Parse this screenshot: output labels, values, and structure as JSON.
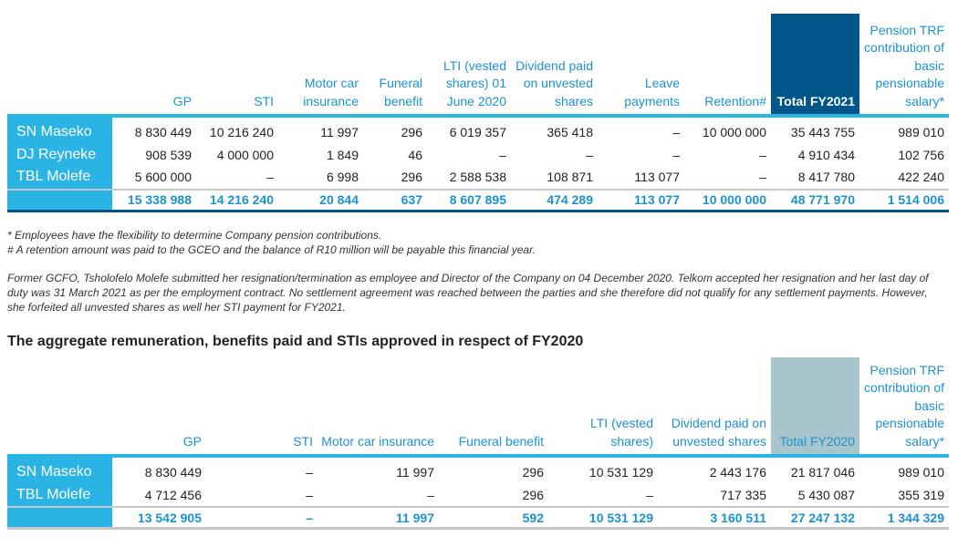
{
  "table_fy2021": {
    "headers": [
      "GP",
      "STI",
      "Motor car insurance",
      "Funeral benefit",
      "LTI (vested shares) 01 June 2020",
      "Dividend paid on unvested shares",
      "Leave payments",
      "Retention#",
      "Total FY2021",
      "Pension TRF contribution of basic pensionable salary*"
    ],
    "rows": [
      {
        "name": "SN Maseko",
        "values": [
          "8 830 449",
          "10 216 240",
          "11 997",
          "296",
          "6 019 357",
          "365 418",
          "–",
          "10 000 000",
          "35 443 755",
          "989 010"
        ]
      },
      {
        "name": "DJ Reyneke",
        "values": [
          "908 539",
          "4 000 000",
          "1 849",
          "46",
          "–",
          "–",
          "–",
          "–",
          "4 910 434",
          "102 756"
        ]
      },
      {
        "name": "TBL Molefe",
        "values": [
          "5 600 000",
          "–",
          "6 998",
          "296",
          "2 588 538",
          "108 871",
          "113 077",
          "–",
          "8 417 780",
          "422 240"
        ]
      }
    ],
    "totals": [
      "15 338 988",
      "14 216 240",
      "20 844",
      "637",
      "8 607 895",
      "474 289",
      "113 077",
      "10 000 000",
      "48 771 970",
      "1 514 006"
    ]
  },
  "footnotes": [
    "*  Employees have the flexibility to determine Company pension contributions.",
    "#  A retention amount was paid to the GCEO and the balance of R10 million will be payable this financial year."
  ],
  "paragraph": "Former GCFO, Tsholofelo Molefe submitted her resignation/termination as employee and Director of the Company on 04 December 2020. Telkom accepted her resignation and her last day of duty was 31 March 2021 as per the employment contract. No settlement agreement was reached between the parties and she therefore did not qualify for any settlement payments. However, she forfeited all unvested shares as well her STI payment for FY2021.",
  "heading_fy2020": "The aggregate remuneration, benefits paid and STIs approved in respect of FY2020",
  "table_fy2020": {
    "headers": [
      "GP",
      "STI",
      "Motor car insurance",
      "Funeral benefit",
      "LTI (vested shares)",
      "Dividend paid on unvested shares",
      "Total FY2020",
      "Pension TRF contribution of basic pensionable salary*"
    ],
    "rows": [
      {
        "name": "SN Maseko",
        "values": [
          "8 830 449",
          "–",
          "11 997",
          "296",
          "10 531 129",
          "2 443 176",
          "21 817 046",
          "989 010"
        ]
      },
      {
        "name": "TBL Molefe",
        "values": [
          "4 712 456",
          "–",
          "–",
          "296",
          "–",
          "717 335",
          "5 430 087",
          "355 319"
        ]
      }
    ],
    "totals": [
      "13 542 905",
      "–",
      "11 997",
      "592",
      "10 531 129",
      "3 160 511",
      "27 247 132",
      "1 344 329"
    ]
  }
}
